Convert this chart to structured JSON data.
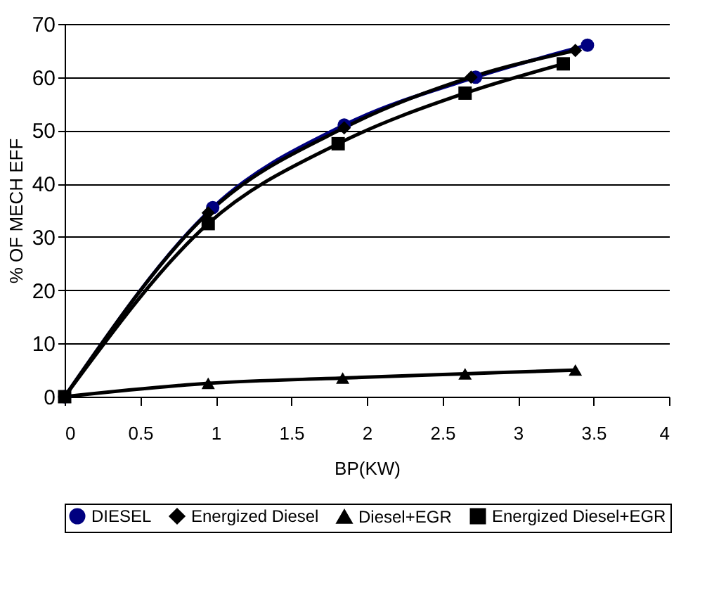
{
  "chart_data": {
    "type": "line",
    "xlabel": "BP(KW)",
    "ylabel": "% OF MECH EFF",
    "xlim": [
      0,
      4
    ],
    "xticks": [
      0,
      0.5,
      1,
      1.5,
      2,
      2.5,
      3,
      3.5,
      4
    ],
    "ylim": [
      0,
      70
    ],
    "yticks": [
      0,
      10,
      20,
      30,
      40,
      50,
      60,
      70
    ],
    "grid": "y",
    "legend": "bottom",
    "line_style": "solid",
    "series": [
      {
        "name": "DIESEL",
        "color": "#000080",
        "marker": "circle",
        "x": [
          0,
          0.98,
          1.85,
          2.72,
          3.46
        ],
        "values": [
          0,
          35.5,
          51,
          60,
          66
        ]
      },
      {
        "name": "Energized Diesel",
        "color": "#000000",
        "marker": "diamond",
        "x": [
          0,
          0.95,
          1.85,
          2.69,
          3.38
        ],
        "values": [
          0,
          34.5,
          50.5,
          60,
          65
        ]
      },
      {
        "name": "Diesel+EGR",
        "color": "#000000",
        "marker": "triangle",
        "x": [
          0,
          0.95,
          1.84,
          2.65,
          3.38
        ],
        "values": [
          0,
          2.5,
          3.5,
          4.3,
          5
        ]
      },
      {
        "name": "Energized Diesel+EGR",
        "color": "#000000",
        "marker": "square",
        "x": [
          0,
          0.95,
          1.81,
          2.65,
          3.3
        ],
        "values": [
          0,
          32.5,
          47.5,
          57,
          62.5
        ]
      }
    ]
  }
}
